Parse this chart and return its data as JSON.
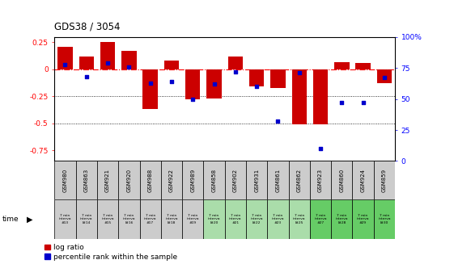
{
  "title": "GDS38 / 3054",
  "samples": [
    "GSM980",
    "GSM863",
    "GSM921",
    "GSM920",
    "GSM988",
    "GSM922",
    "GSM989",
    "GSM858",
    "GSM902",
    "GSM931",
    "GSM861",
    "GSM862",
    "GSM923",
    "GSM860",
    "GSM924",
    "GSM859"
  ],
  "time_labels": [
    [
      "7 min",
      "interva",
      "#13"
    ],
    [
      "7 min",
      "interva",
      "l#14"
    ],
    [
      "7 min",
      "interva",
      "#15"
    ],
    [
      "7 min",
      "interva",
      "l#16"
    ],
    [
      "7 min",
      "interva",
      "#17"
    ],
    [
      "7 min",
      "interva",
      "l#18"
    ],
    [
      "7 min",
      "interva",
      "#19"
    ],
    [
      "7 min",
      "interva",
      "l#20"
    ],
    [
      "7 min",
      "interva",
      "#21"
    ],
    [
      "7 min",
      "interva",
      "l#22"
    ],
    [
      "7 min",
      "interva",
      "#23"
    ],
    [
      "7 min",
      "interva",
      "l#25"
    ],
    [
      "7 min",
      "interva",
      "#27"
    ],
    [
      "7 min",
      "interva",
      "l#28"
    ],
    [
      "7 min",
      "interva",
      "#29"
    ],
    [
      "7 min",
      "interva",
      "l#30"
    ]
  ],
  "log_ratio": [
    0.21,
    0.12,
    0.25,
    0.17,
    -0.37,
    0.08,
    -0.28,
    -0.27,
    0.12,
    -0.16,
    -0.17,
    -0.51,
    -0.51,
    0.07,
    0.06,
    -0.13
  ],
  "percentile": [
    78,
    68,
    79,
    76,
    63,
    64,
    50,
    62,
    72,
    60,
    32,
    71,
    10,
    47,
    47,
    67
  ],
  "ylim_left": [
    -0.85,
    0.3
  ],
  "ylim_right": [
    0,
    100
  ],
  "yticks_left": [
    0.25,
    0.0,
    -0.25,
    -0.5,
    -0.75
  ],
  "yticks_right": [
    100,
    75,
    50,
    25,
    0
  ],
  "hline_y": 0,
  "dotted_lines": [
    -0.25,
    -0.5
  ],
  "bar_color": "#cc0000",
  "dot_color": "#0000cc",
  "bg_color_gray": "#cccccc",
  "bg_color_green1": "#aaddaa",
  "bg_color_green2": "#66cc66",
  "sample_row_colors": [
    "#cccccc",
    "#cccccc",
    "#cccccc",
    "#cccccc",
    "#cccccc",
    "#cccccc",
    "#cccccc",
    "#cccccc",
    "#cccccc",
    "#cccccc",
    "#cccccc",
    "#cccccc",
    "#cccccc",
    "#cccccc",
    "#cccccc",
    "#cccccc"
  ],
  "time_row_colors": [
    "#cccccc",
    "#cccccc",
    "#cccccc",
    "#cccccc",
    "#cccccc",
    "#cccccc",
    "#cccccc",
    "#aaddaa",
    "#aaddaa",
    "#aaddaa",
    "#aaddaa",
    "#aaddaa",
    "#66cc66",
    "#66cc66",
    "#66cc66",
    "#66cc66"
  ]
}
